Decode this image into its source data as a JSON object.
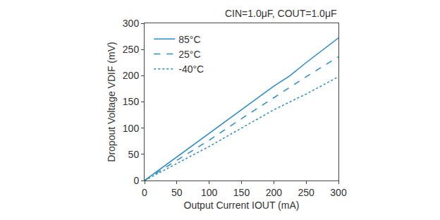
{
  "chart_data": {
    "type": "line",
    "annotation": "CIN=1.0μF, COUT=1.0μF",
    "x_label": "Output Current IOUT (mA)",
    "y_label": "Dropout Voltage VDIF (mV)",
    "series": [
      {
        "name": "85°C",
        "color": "#2b8cc4",
        "line_style": "solid",
        "x": [
          0,
          50,
          100,
          150,
          200,
          225,
          250,
          300
        ],
        "values": [
          0,
          45,
          90,
          135,
          180,
          200,
          225,
          272
        ]
      },
      {
        "name": "25°C",
        "color": "#2b8cc4",
        "line_style": "dash",
        "x": [
          0,
          50,
          100,
          150,
          200,
          250,
          300
        ],
        "values": [
          0,
          38,
          77,
          118,
          158,
          198,
          236
        ]
      },
      {
        "name": "-40°C",
        "color": "#2b8cc4",
        "line_style": "dot",
        "x": [
          0,
          50,
          100,
          150,
          200,
          250,
          300
        ],
        "values": [
          0,
          33,
          65,
          100,
          135,
          165,
          198
        ]
      }
    ],
    "xlim": [
      0,
      300
    ],
    "xticks": [
      0,
      50,
      100,
      150,
      200,
      250,
      300
    ],
    "ylim": [
      0,
      300
    ],
    "yticks": [
      0,
      50,
      100,
      150,
      200,
      250,
      300
    ],
    "grid": false,
    "legend": "top left"
  }
}
